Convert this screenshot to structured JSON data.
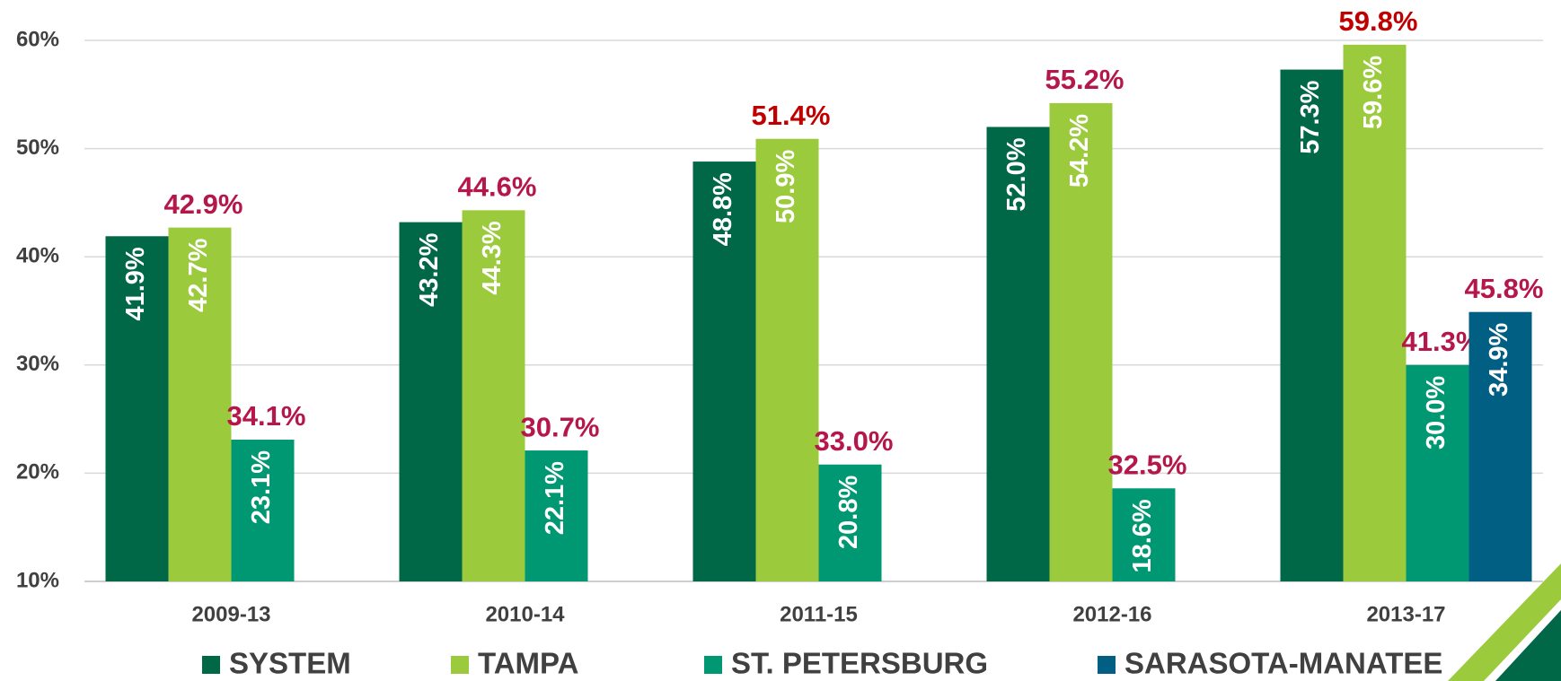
{
  "chart_data": {
    "type": "bar",
    "categories": [
      "2009-13",
      "2010-14",
      "2011-15",
      "2012-16",
      "2013-17"
    ],
    "ylim": [
      10,
      60
    ],
    "yticks": [
      {
        "value": 10,
        "label": "10%"
      },
      {
        "value": 20,
        "label": "20%"
      },
      {
        "value": 30,
        "label": "30%"
      },
      {
        "value": 40,
        "label": "40%"
      },
      {
        "value": 50,
        "label": "50%"
      },
      {
        "value": 60,
        "label": "60%"
      }
    ],
    "grid": true,
    "legend": "bottom",
    "series": [
      {
        "name": "SYSTEM",
        "color": "#006747",
        "values": [
          41.9,
          43.2,
          48.8,
          52.0,
          57.3
        ],
        "value_labels": [
          "41.9%",
          "43.2%",
          "48.8%",
          "52.0%",
          "57.3%"
        ]
      },
      {
        "name": "TAMPA",
        "color": "#9bcb3c",
        "values": [
          42.7,
          44.3,
          50.9,
          54.2,
          59.6
        ],
        "value_labels": [
          "42.7%",
          "44.3%",
          "50.9%",
          "54.2%",
          "59.6%"
        ],
        "outer_values": [
          42.9,
          44.6,
          51.4,
          55.2,
          59.8
        ],
        "outer_value_labels": [
          "42.9%",
          "44.6%",
          "51.4%",
          "55.2%",
          "59.8%"
        ],
        "outer_label_colors": [
          "#b5174b",
          "#b5174b",
          "#c00000",
          "#b5174b",
          "#c00000"
        ]
      },
      {
        "name": "ST. PETERSBURG",
        "color": "#009872",
        "values": [
          23.1,
          22.1,
          20.8,
          18.6,
          30.0
        ],
        "value_labels": [
          "23.1%",
          "22.1%",
          "20.8%",
          "18.6%",
          "30.0%"
        ],
        "outer_values": [
          34.1,
          30.7,
          33.0,
          32.5,
          41.3
        ],
        "outer_value_labels": [
          "34.1%",
          "30.7%",
          "33.0%",
          "32.5%",
          "41.3%"
        ],
        "outer_label_colors": [
          "#b5174b",
          "#b5174b",
          "#b5174b",
          "#b5174b",
          "#b5174b"
        ]
      },
      {
        "name": "SARASOTA-MANATEE",
        "color": "#005f83",
        "values": [
          null,
          null,
          null,
          null,
          34.9
        ],
        "value_labels": [
          null,
          null,
          null,
          null,
          "34.9%"
        ],
        "outer_values": [
          null,
          null,
          null,
          null,
          45.8
        ],
        "outer_value_labels": [
          null,
          null,
          null,
          null,
          "45.8%"
        ],
        "outer_label_colors": [
          null,
          null,
          null,
          null,
          "#b5174b"
        ]
      }
    ]
  }
}
